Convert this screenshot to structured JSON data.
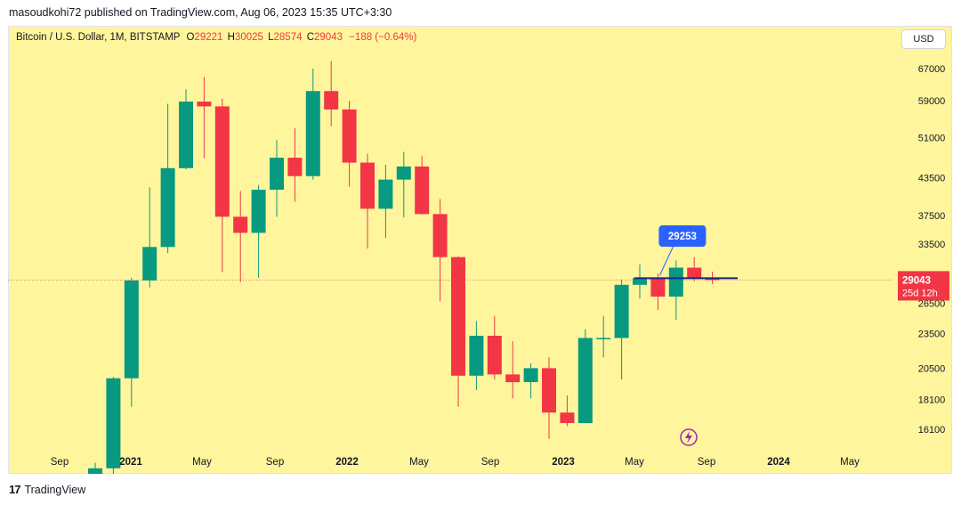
{
  "header": {
    "author_line": "masoudkohi72 published on TradingView.com, Aug 06, 2023 15:35 UTC+3:30"
  },
  "legend": {
    "symbol": "Bitcoin / U.S. Dollar, 1M, BITSTAMP",
    "o_label": "O",
    "o_value": "29221",
    "h_label": "H",
    "h_value": "30025",
    "l_label": "L",
    "l_value": "28574",
    "c_label": "C",
    "c_value": "29043",
    "change": "−188 (−0.64%)"
  },
  "currency_button": "USD",
  "footer": {
    "brand": "TradingView",
    "logo_text": "17"
  },
  "colors": {
    "background": "#fff59d",
    "up": "#089981",
    "down": "#f23645",
    "label_blue": "#2962ff",
    "forecast_line": "#1a237e"
  },
  "chart_data": {
    "type": "candlestick",
    "title": "Bitcoin / U.S. Dollar, 1M, BITSTAMP",
    "y_scale": "log",
    "ylim": [
      14800,
      76000
    ],
    "y_ticks": [
      67000,
      59000,
      51000,
      43500,
      37500,
      33500,
      26500,
      23500,
      20500,
      18100,
      16100
    ],
    "x_ticks": [
      "Sep",
      "2021",
      "May",
      "Sep",
      "2022",
      "May",
      "Sep",
      "2023",
      "May",
      "Sep",
      "2024",
      "May"
    ],
    "candles": [
      {
        "date": "2020-10",
        "open": 10800,
        "high": 14100,
        "low": 10400,
        "close": 13800
      },
      {
        "date": "2020-11",
        "open": 13800,
        "high": 19800,
        "low": 13200,
        "close": 19700
      },
      {
        "date": "2020-12",
        "open": 19700,
        "high": 29300,
        "low": 17600,
        "close": 29000
      },
      {
        "date": "2021-01",
        "open": 29000,
        "high": 41900,
        "low": 28200,
        "close": 33100
      },
      {
        "date": "2021-02",
        "open": 33100,
        "high": 58300,
        "low": 32300,
        "close": 45200
      },
      {
        "date": "2021-03",
        "open": 45200,
        "high": 61700,
        "low": 45000,
        "close": 58800
      },
      {
        "date": "2021-04",
        "open": 58800,
        "high": 64800,
        "low": 47000,
        "close": 57700
      },
      {
        "date": "2021-05",
        "open": 57700,
        "high": 59500,
        "low": 30000,
        "close": 37300
      },
      {
        "date": "2021-06",
        "open": 37300,
        "high": 41300,
        "low": 28800,
        "close": 35000
      },
      {
        "date": "2021-07",
        "open": 35000,
        "high": 42300,
        "low": 29300,
        "close": 41500
      },
      {
        "date": "2021-08",
        "open": 41500,
        "high": 50500,
        "low": 37300,
        "close": 47100
      },
      {
        "date": "2021-09",
        "open": 47100,
        "high": 52900,
        "low": 39600,
        "close": 43800
      },
      {
        "date": "2021-10",
        "open": 43800,
        "high": 67000,
        "low": 43200,
        "close": 61300
      },
      {
        "date": "2021-11",
        "open": 61300,
        "high": 69000,
        "low": 53300,
        "close": 57000
      },
      {
        "date": "2021-12",
        "open": 57000,
        "high": 59000,
        "low": 42000,
        "close": 46200
      },
      {
        "date": "2022-01",
        "open": 46200,
        "high": 47900,
        "low": 32900,
        "close": 38500
      },
      {
        "date": "2022-02",
        "open": 38500,
        "high": 45800,
        "low": 34300,
        "close": 43200
      },
      {
        "date": "2022-03",
        "open": 43200,
        "high": 48200,
        "low": 37200,
        "close": 45500
      },
      {
        "date": "2022-04",
        "open": 45500,
        "high": 47400,
        "low": 37600,
        "close": 37700
      },
      {
        "date": "2022-05",
        "open": 37700,
        "high": 40000,
        "low": 26700,
        "close": 31800
      },
      {
        "date": "2022-06",
        "open": 31800,
        "high": 31900,
        "low": 17600,
        "close": 19900
      },
      {
        "date": "2022-07",
        "open": 19900,
        "high": 24700,
        "low": 18800,
        "close": 23300
      },
      {
        "date": "2022-08",
        "open": 23300,
        "high": 25200,
        "low": 19600,
        "close": 20000
      },
      {
        "date": "2022-09",
        "open": 20000,
        "high": 22800,
        "low": 18200,
        "close": 19400
      },
      {
        "date": "2022-10",
        "open": 19400,
        "high": 20900,
        "low": 18200,
        "close": 20500
      },
      {
        "date": "2022-11",
        "open": 20500,
        "high": 21400,
        "low": 15500,
        "close": 17200
      },
      {
        "date": "2022-12",
        "open": 17200,
        "high": 18400,
        "low": 16300,
        "close": 16500
      },
      {
        "date": "2023-01",
        "open": 16500,
        "high": 23900,
        "low": 16500,
        "close": 23100
      },
      {
        "date": "2023-02",
        "open": 23100,
        "high": 25200,
        "low": 21400,
        "close": 23100
      },
      {
        "date": "2023-03",
        "open": 23100,
        "high": 29100,
        "low": 19600,
        "close": 28500
      },
      {
        "date": "2023-04",
        "open": 28500,
        "high": 30900,
        "low": 27000,
        "close": 29300
      },
      {
        "date": "2023-05",
        "open": 29300,
        "high": 29800,
        "low": 25800,
        "close": 27200
      },
      {
        "date": "2023-06",
        "open": 27200,
        "high": 31400,
        "low": 24800,
        "close": 30500
      },
      {
        "date": "2023-07",
        "open": 30500,
        "high": 31800,
        "low": 28900,
        "close": 29200
      },
      {
        "date": "2023-08",
        "open": 29221,
        "high": 30025,
        "low": 28574,
        "close": 29043
      }
    ],
    "last_price_label": "29043",
    "countdown_label": "25d 12h",
    "annotation": {
      "label": "29253",
      "date": "2023-05",
      "value": 29253
    },
    "forecast_line": {
      "from": "2023-04",
      "to": "2023-09",
      "value": 29253
    }
  }
}
